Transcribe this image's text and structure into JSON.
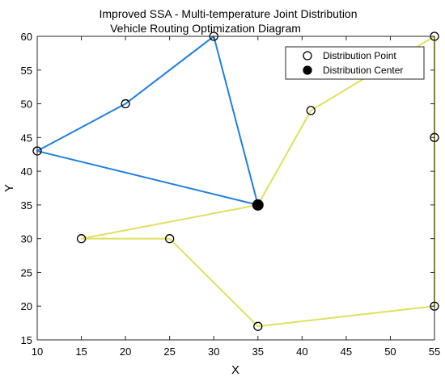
{
  "chart_data": {
    "type": "line",
    "title": [
      "Improved SSA - Multi-temperature Joint Distribution",
      "Vehicle Routing Optimization Diagram"
    ],
    "xlabel": "X",
    "ylabel": "Y",
    "xlim": [
      10,
      55
    ],
    "ylim": [
      15,
      60
    ],
    "xticks": [
      "10",
      "15",
      "20",
      "25",
      "30",
      "35",
      "40",
      "45",
      "50",
      "55"
    ],
    "yticks": [
      "15",
      "20",
      "25",
      "30",
      "35",
      "40",
      "45",
      "50",
      "55",
      "60"
    ],
    "grid": false,
    "legend_position": "top-right",
    "legend": [
      {
        "label": "Distribution Point",
        "marker": "open-circle"
      },
      {
        "label": "Distribution Center",
        "marker": "filled-circle"
      }
    ],
    "center": {
      "x": 35,
      "y": 35
    },
    "routes": [
      {
        "color": "#1f7fe0",
        "points": [
          [
            35,
            35
          ],
          [
            30,
            60
          ],
          [
            20,
            50
          ],
          [
            10,
            43
          ],
          [
            35,
            35
          ]
        ]
      },
      {
        "color": "#e0e060",
        "points": [
          [
            35,
            35
          ],
          [
            41,
            49
          ],
          [
            55,
            60
          ],
          [
            55,
            45
          ],
          [
            55,
            20
          ],
          [
            35,
            17
          ],
          [
            25,
            30
          ],
          [
            15,
            30
          ],
          [
            35,
            35
          ]
        ]
      }
    ],
    "distribution_points": [
      [
        30,
        60
      ],
      [
        20,
        50
      ],
      [
        10,
        43
      ],
      [
        41,
        49
      ],
      [
        55,
        60
      ],
      [
        55,
        45
      ],
      [
        55,
        20
      ],
      [
        35,
        17
      ],
      [
        25,
        30
      ],
      [
        15,
        30
      ]
    ]
  }
}
